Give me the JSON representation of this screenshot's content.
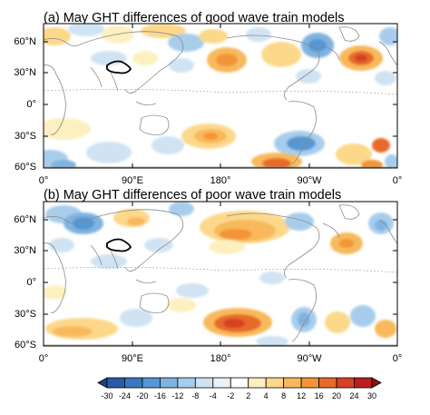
{
  "panels": [
    {
      "id": "a",
      "title": "(a) May GHT differences of good wave train models",
      "y_ticks": [
        "60°N",
        "30°N",
        "0°",
        "30°S",
        "60°S"
      ],
      "x_ticks": [
        "0°",
        "90°E",
        "180°",
        "90°W",
        "0°"
      ]
    },
    {
      "id": "b",
      "title": "(b) May GHT differences of poor wave train models",
      "y_ticks": [
        "60°N",
        "30°N",
        "0°",
        "30°S",
        "60°S"
      ],
      "x_ticks": [
        "0°",
        "90°E",
        "180°",
        "90°W",
        "0°"
      ]
    }
  ],
  "colorbar": {
    "levels": [
      "-30",
      "-24",
      "-20",
      "-16",
      "-12",
      "-8",
      "-4",
      "-2",
      "2",
      "4",
      "8",
      "12",
      "16",
      "20",
      "24",
      "30"
    ],
    "colors": [
      "#1d3f86",
      "#2a5ba8",
      "#3a78c2",
      "#5796d2",
      "#7fb3e0",
      "#a8cdec",
      "#cfe3f3",
      "#e9f2f9",
      "#ffffff",
      "#fdf0c0",
      "#fcd88a",
      "#f8b95c",
      "#f39437",
      "#e86a2a",
      "#d44224",
      "#b91f1e",
      "#8f1014"
    ]
  }
}
